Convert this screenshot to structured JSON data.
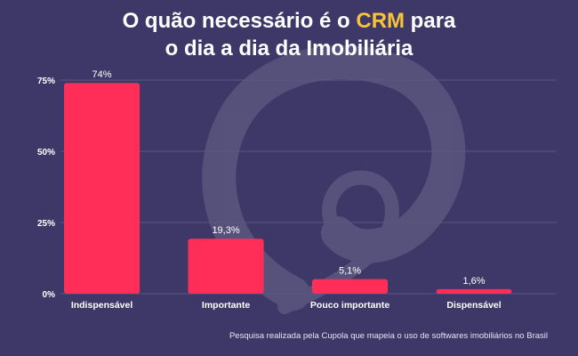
{
  "title": {
    "line1_pre": "O quão necessário é o ",
    "line1_highlight": "CRM",
    "line1_post": " para",
    "line2": "o dia a dia da Imobiliária"
  },
  "colors": {
    "background": "#3d3868",
    "bar": "#fe2e59",
    "highlight": "#f6c33a",
    "grid": "#5b5785",
    "text": "#ffffff"
  },
  "chart_data": {
    "type": "bar",
    "categories": [
      "Indispensável",
      "Importante",
      "Pouco importante",
      "Dispensável"
    ],
    "values": [
      74,
      19.3,
      5.1,
      1.6
    ],
    "value_labels": [
      "74%",
      "19,3%",
      "5,1%",
      "1,6%"
    ],
    "ylim": [
      0,
      75
    ],
    "yticks": [
      0,
      25,
      50,
      75
    ],
    "ytick_labels": [
      "0%",
      "25%",
      "50%",
      "75%"
    ],
    "grid": true,
    "xlabel": "",
    "ylabel": ""
  },
  "footnote": "Pesquisa realizada pela Cupola que mapeia o uso de softwares imobiliários no Brasil"
}
